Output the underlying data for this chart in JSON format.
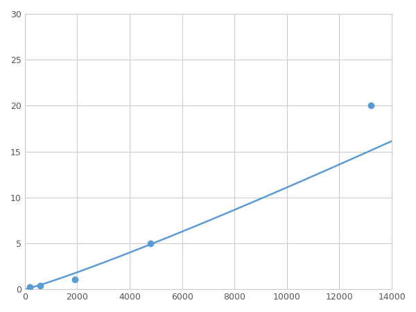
{
  "x_points": [
    200,
    600,
    1900,
    4800,
    13200
  ],
  "y_points": [
    0.2,
    0.4,
    1.1,
    5.0,
    20.0
  ],
  "line_color": "#5b9bd5",
  "marker_color": "#5b9bd5",
  "marker_size": 6,
  "line_width": 1.8,
  "xlim": [
    0,
    14000
  ],
  "ylim": [
    0,
    30
  ],
  "xticks": [
    0,
    2000,
    4000,
    6000,
    8000,
    10000,
    12000,
    14000
  ],
  "yticks": [
    0,
    5,
    10,
    15,
    20,
    25,
    30
  ],
  "grid_color": "#cccccc",
  "background_color": "#ffffff",
  "spine_color": "#cccccc"
}
